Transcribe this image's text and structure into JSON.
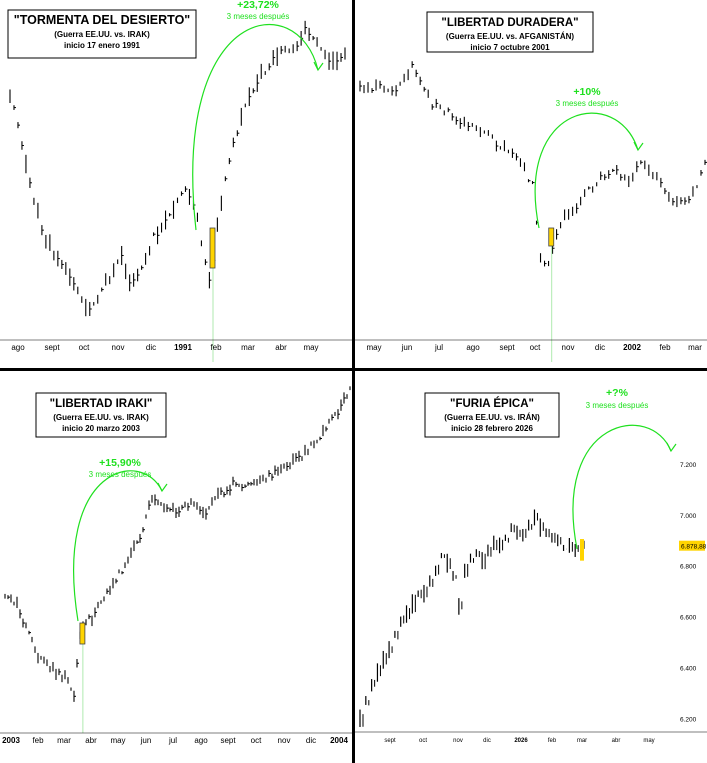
{
  "chart_data": [
    {
      "type": "line",
      "title": "\"TORMENTA DEL DESIERTO\"",
      "subtitle": "(Guerra EE.UU. vs. IRAK)",
      "date_label": "inicio 17 enero 1991",
      "gain_label": "+23,72%",
      "after_label": "3 meses después",
      "x_ticks": [
        "ago",
        "sept",
        "oct",
        "nov",
        "dic",
        "1991",
        "feb",
        "mar",
        "abr",
        "may"
      ],
      "x_bold": [
        5
      ],
      "y_ticks": [],
      "points": [
        [
          0,
          0.76
        ],
        [
          0.03,
          0.63
        ],
        [
          0.06,
          0.48
        ],
        [
          0.1,
          0.32
        ],
        [
          0.13,
          0.27
        ],
        [
          0.17,
          0.22
        ],
        [
          0.2,
          0.15
        ],
        [
          0.23,
          0.09
        ],
        [
          0.26,
          0.13
        ],
        [
          0.3,
          0.2
        ],
        [
          0.33,
          0.26
        ],
        [
          0.36,
          0.17
        ],
        [
          0.4,
          0.23
        ],
        [
          0.43,
          0.32
        ],
        [
          0.46,
          0.35
        ],
        [
          0.5,
          0.43
        ],
        [
          0.53,
          0.46
        ],
        [
          0.56,
          0.38
        ],
        [
          0.58,
          0.25
        ],
        [
          0.6,
          0.17
        ],
        [
          0.62,
          0.36
        ],
        [
          0.66,
          0.58
        ],
        [
          0.7,
          0.71
        ],
        [
          0.74,
          0.8
        ],
        [
          0.78,
          0.86
        ],
        [
          0.82,
          0.89
        ],
        [
          0.86,
          0.9
        ],
        [
          0.88,
          0.96
        ],
        [
          0.92,
          0.9
        ],
        [
          0.95,
          0.86
        ],
        [
          1,
          0.87
        ]
      ],
      "event_x": 0.6
    },
    {
      "type": "line",
      "title": "\"LIBERTAD DURADERA\"",
      "subtitle": "(Guerra EE.UU. vs. AFGANISTÁN)",
      "date_label": "inicio 7 octubre 2001",
      "gain_label": "+10%",
      "after_label": "3 meses después",
      "x_ticks": [
        "may",
        "jun",
        "jul",
        "ago",
        "sept",
        "oct",
        "nov",
        "dic",
        "2002",
        "feb",
        "mar"
      ],
      "x_bold": [
        8
      ],
      "y_ticks": [],
      "points": [
        [
          0,
          0.9
        ],
        [
          0.03,
          0.88
        ],
        [
          0.06,
          0.9
        ],
        [
          0.1,
          0.87
        ],
        [
          0.13,
          0.92
        ],
        [
          0.15,
          0.97
        ],
        [
          0.18,
          0.89
        ],
        [
          0.21,
          0.83
        ],
        [
          0.25,
          0.81
        ],
        [
          0.28,
          0.78
        ],
        [
          0.32,
          0.75
        ],
        [
          0.36,
          0.73
        ],
        [
          0.4,
          0.69
        ],
        [
          0.44,
          0.67
        ],
        [
          0.47,
          0.62
        ],
        [
          0.5,
          0.55
        ],
        [
          0.52,
          0.32
        ],
        [
          0.54,
          0.25
        ],
        [
          0.56,
          0.34
        ],
        [
          0.58,
          0.42
        ],
        [
          0.62,
          0.47
        ],
        [
          0.66,
          0.53
        ],
        [
          0.7,
          0.58
        ],
        [
          0.74,
          0.6
        ],
        [
          0.78,
          0.57
        ],
        [
          0.82,
          0.64
        ],
        [
          0.86,
          0.57
        ],
        [
          0.9,
          0.51
        ],
        [
          0.94,
          0.48
        ],
        [
          0.97,
          0.54
        ],
        [
          1,
          0.62
        ]
      ],
      "event_x": 0.55
    },
    {
      "type": "line",
      "title": "\"LIBERTAD IRAKI\"",
      "subtitle": "(Guerra EE.UU. vs. IRAK)",
      "date_label": "inicio 20 marzo 2003",
      "gain_label": "+15,90%",
      "after_label": "3 meses después",
      "x_ticks": [
        "2003",
        "feb",
        "mar",
        "abr",
        "may",
        "jun",
        "jul",
        "ago",
        "sept",
        "oct",
        "nov",
        "dic",
        "2004"
      ],
      "x_bold": [
        0,
        12
      ],
      "y_ticks": [],
      "points": [
        [
          0,
          0.36
        ],
        [
          0.03,
          0.34
        ],
        [
          0.06,
          0.27
        ],
        [
          0.1,
          0.17
        ],
        [
          0.14,
          0.14
        ],
        [
          0.17,
          0.12
        ],
        [
          0.2,
          0.07
        ],
        [
          0.22,
          0.27
        ],
        [
          0.25,
          0.29
        ],
        [
          0.29,
          0.36
        ],
        [
          0.33,
          0.42
        ],
        [
          0.37,
          0.49
        ],
        [
          0.4,
          0.56
        ],
        [
          0.43,
          0.66
        ],
        [
          0.46,
          0.63
        ],
        [
          0.5,
          0.61
        ],
        [
          0.54,
          0.64
        ],
        [
          0.58,
          0.61
        ],
        [
          0.62,
          0.66
        ],
        [
          0.66,
          0.69
        ],
        [
          0.7,
          0.69
        ],
        [
          0.74,
          0.71
        ],
        [
          0.78,
          0.72
        ],
        [
          0.82,
          0.75
        ],
        [
          0.86,
          0.77
        ],
        [
          0.9,
          0.82
        ],
        [
          0.94,
          0.87
        ],
        [
          0.97,
          0.92
        ],
        [
          1,
          0.98
        ]
      ],
      "event_x": 0.22
    },
    {
      "type": "line",
      "title": "\"FURIA ÉPICA\"",
      "subtitle": "(Guerra EE.UU. vs. IRÁN)",
      "date_label": "inicio 28 febrero 2026",
      "gain_label": "+?%",
      "after_label": "3 meses después",
      "x_ticks": [
        "sept",
        "oct",
        "nov",
        "dic",
        "2026",
        "feb",
        "mar",
        "abr",
        "may"
      ],
      "x_bold": [
        4
      ],
      "y_ticks": [
        "7.200",
        "7.000",
        "6.800",
        "6.600",
        "6.400",
        "6.200"
      ],
      "y_range": [
        6150,
        7330
      ],
      "last_value": "6.878,88",
      "values": [
        6200,
        6270,
        6330,
        6380,
        6430,
        6470,
        6530,
        6580,
        6610,
        6650,
        6690,
        6690,
        6740,
        6780,
        6840,
        6810,
        6760,
        6640,
        6780,
        6830,
        6850,
        6820,
        6860,
        6890,
        6880,
        6910,
        6950,
        6930,
        6920,
        6960,
        6990,
        6950,
        6930,
        6910,
        6900,
        6870,
        6880,
        6860,
        6880
      ]
    }
  ]
}
